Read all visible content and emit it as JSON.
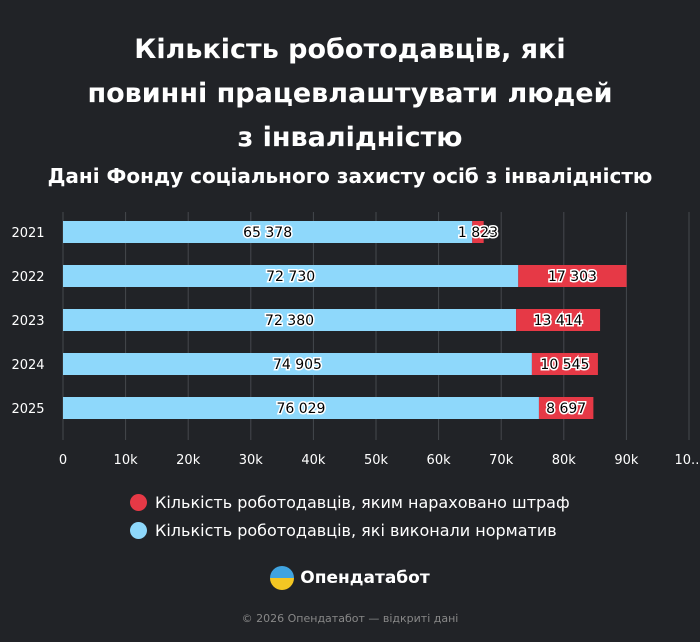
{
  "chart_data": {
    "type": "bar",
    "orientation": "horizontal",
    "stacked": true,
    "title": "Кількість роботодавців, які повинні працевлаштувати людей з інвалідністю",
    "title_lines": [
      "Кількість роботодавців, які",
      "повинні працевлаштувати людей",
      "з інвалідністю"
    ],
    "subtitle": "Дані Фонду соціального захисту осіб з інвалідністю",
    "categories": [
      "2021",
      "2022",
      "2023",
      "2024",
      "2025"
    ],
    "series": [
      {
        "name": "Кількість роботодавців, які виконали норматив",
        "color": "#8ed8fb",
        "values": [
          65378,
          72730,
          72380,
          74905,
          76029
        ],
        "labels": [
          "65 378",
          "72 730",
          "72 380",
          "74 905",
          "76 029"
        ]
      },
      {
        "name": "Кількість роботодавців, яким нараховано штраф",
        "color": "#e63946",
        "values": [
          1823,
          17303,
          13414,
          10545,
          8697
        ],
        "labels": [
          "1 823",
          "17 303",
          "13 414",
          "10 545",
          "8 697"
        ]
      }
    ],
    "xlim": [
      0,
      100000
    ],
    "xticks": [
      "0",
      "10k",
      "20k",
      "30k",
      "40k",
      "50k",
      "60k",
      "70k",
      "80k",
      "90k",
      "10..."
    ],
    "grid": true,
    "legend_position": "bottom"
  },
  "legend_order": [
    1,
    0
  ],
  "logo": {
    "name": "Опендатабот"
  },
  "footer": "© 2026 Опендатабот — відкриті дані"
}
